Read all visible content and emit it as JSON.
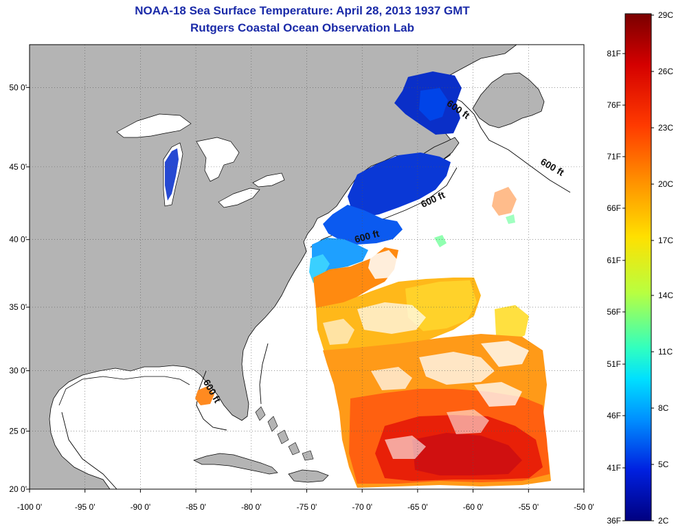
{
  "title_line1": "NOAA-18 Sea Surface Temperature:  April 28, 2013 1937 GMT",
  "title_line2": "Rutgers Coastal Ocean Observation Lab",
  "map": {
    "lon_ticks": [
      {
        "value": -100,
        "label": "-100 0'"
      },
      {
        "value": -95,
        "label": "-95 0'"
      },
      {
        "value": -90,
        "label": "-90 0'"
      },
      {
        "value": -85,
        "label": "-85 0'"
      },
      {
        "value": -80,
        "label": "-80 0'"
      },
      {
        "value": -75,
        "label": "-75 0'"
      },
      {
        "value": -70,
        "label": "-70 0'"
      },
      {
        "value": -65,
        "label": "-65 0'"
      },
      {
        "value": -60,
        "label": "-60 0'"
      },
      {
        "value": -55,
        "label": "-55 0'"
      },
      {
        "value": -50,
        "label": "-50 0'"
      }
    ],
    "lat_ticks": [
      {
        "value": 50,
        "label": "50 0'"
      },
      {
        "value": 45,
        "label": "45 0'"
      },
      {
        "value": 40,
        "label": "40 0'"
      },
      {
        "value": 35,
        "label": "35 0'"
      },
      {
        "value": 30,
        "label": "30 0'"
      },
      {
        "value": 25,
        "label": "25 0'"
      },
      {
        "value": 20,
        "label": "20 0'"
      }
    ],
    "contour_labels": [
      {
        "text": "600 ft",
        "lon": -61.5,
        "lat": 48.5
      },
      {
        "text": "600 ft",
        "lon": -53.0,
        "lat": 44.8
      },
      {
        "text": "600 ft",
        "lon": -63.5,
        "lat": 42.6
      },
      {
        "text": "600 ft",
        "lon": -69.5,
        "lat": 40.0
      },
      {
        "text": "600 ft",
        "lon": -83.8,
        "lat": 28.2
      }
    ],
    "colors": {
      "land": "#b4b4b4",
      "ocean_no_data": "#ffffff",
      "coastline": "#000000",
      "grid": "#555555"
    }
  },
  "colorbar": {
    "celsius_labels": [
      "29C",
      "26C",
      "23C",
      "20C",
      "17C",
      "14C",
      "11C",
      "8C",
      "5C",
      "2C"
    ],
    "fahrenheit_labels": [
      "81F",
      "76F",
      "71F",
      "66F",
      "61F",
      "56F",
      "51F",
      "46F",
      "41F",
      "36F"
    ],
    "range_celsius": [
      2,
      29
    ]
  }
}
